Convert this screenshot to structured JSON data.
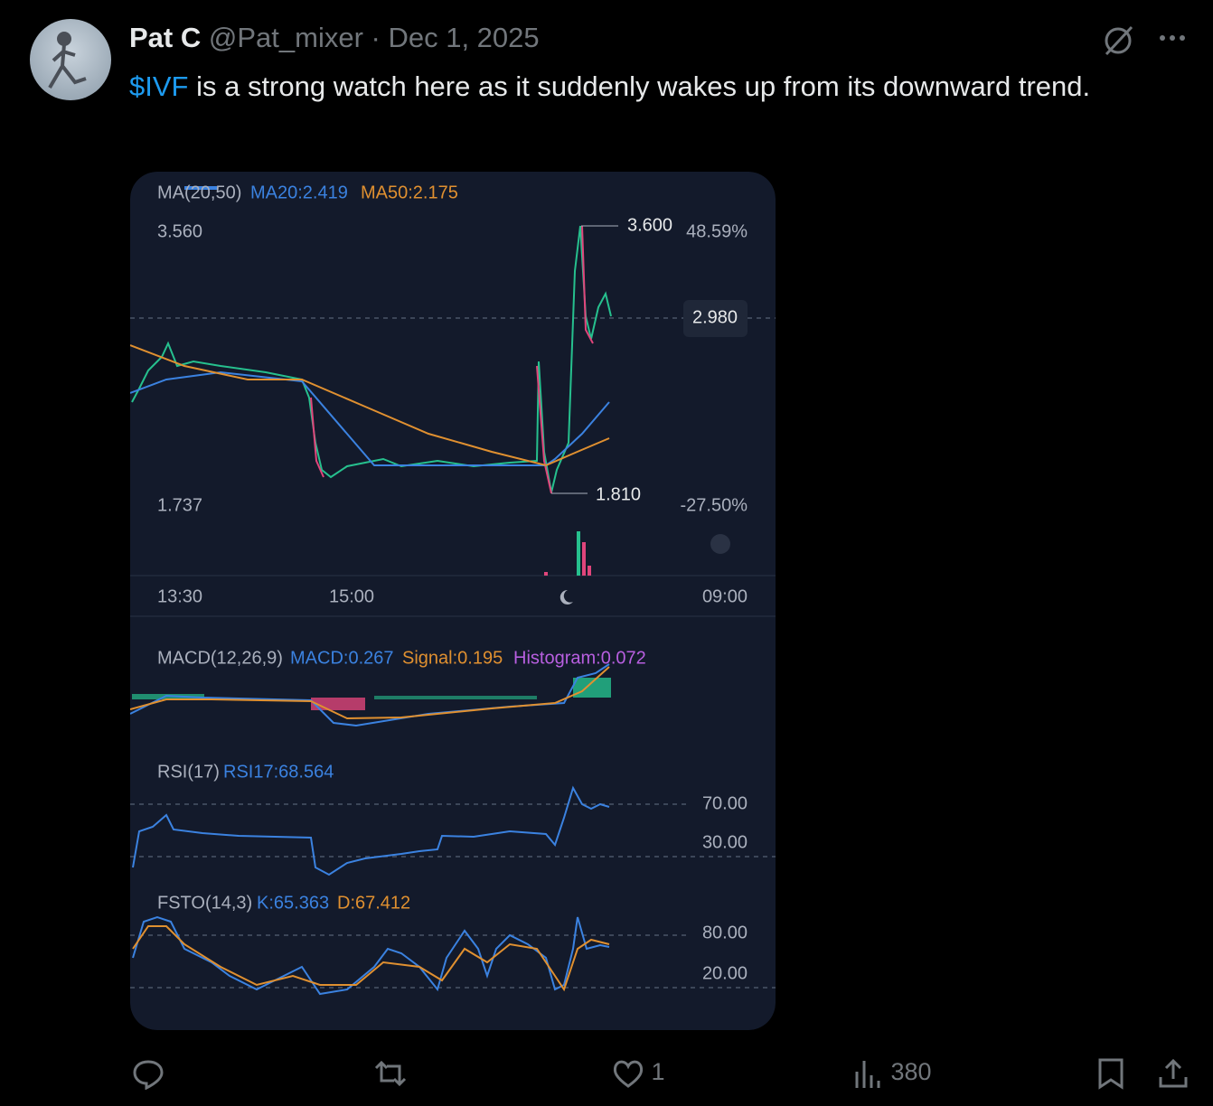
{
  "post": {
    "author": {
      "name": "Pat C",
      "handle": "@Pat_mixer",
      "separator": "·",
      "date": "Dec 1, 2025"
    },
    "text": {
      "cashtag": "$IVF",
      "body": "is a strong watch here as it suddenly wakes up from its downward trend."
    },
    "chart_image": {
      "ma_header": {
        "label": "MA(20,50)",
        "ma20": "MA20:2.419",
        "ma50": "MA50:2.175"
      },
      "price_top": "3.560",
      "high_marker": "3.600",
      "high_pct": "48.59%",
      "last_price": "2.980",
      "low_marker": "1.810",
      "price_bottom": "1.737",
      "low_pct": "-27.50%",
      "time_labels": [
        "13:30",
        "15:00",
        "09:00"
      ],
      "macd_header": {
        "label": "MACD(12,26,9)",
        "macd": "MACD:0.267",
        "signal": "Signal:0.195",
        "histogram": "Histogram:0.072"
      },
      "rsi_header": {
        "label": "RSI(17)",
        "rsi": "RSI17:68.564"
      },
      "rsi_levels": [
        "70.00",
        "30.00"
      ],
      "fsto_header": {
        "label": "FSTO(14,3)",
        "k": "K:65.363",
        "d": "D:67.412"
      },
      "fsto_levels": [
        "80.00",
        "20.00"
      ]
    },
    "actions": {
      "likes": "1",
      "views": "380"
    }
  }
}
